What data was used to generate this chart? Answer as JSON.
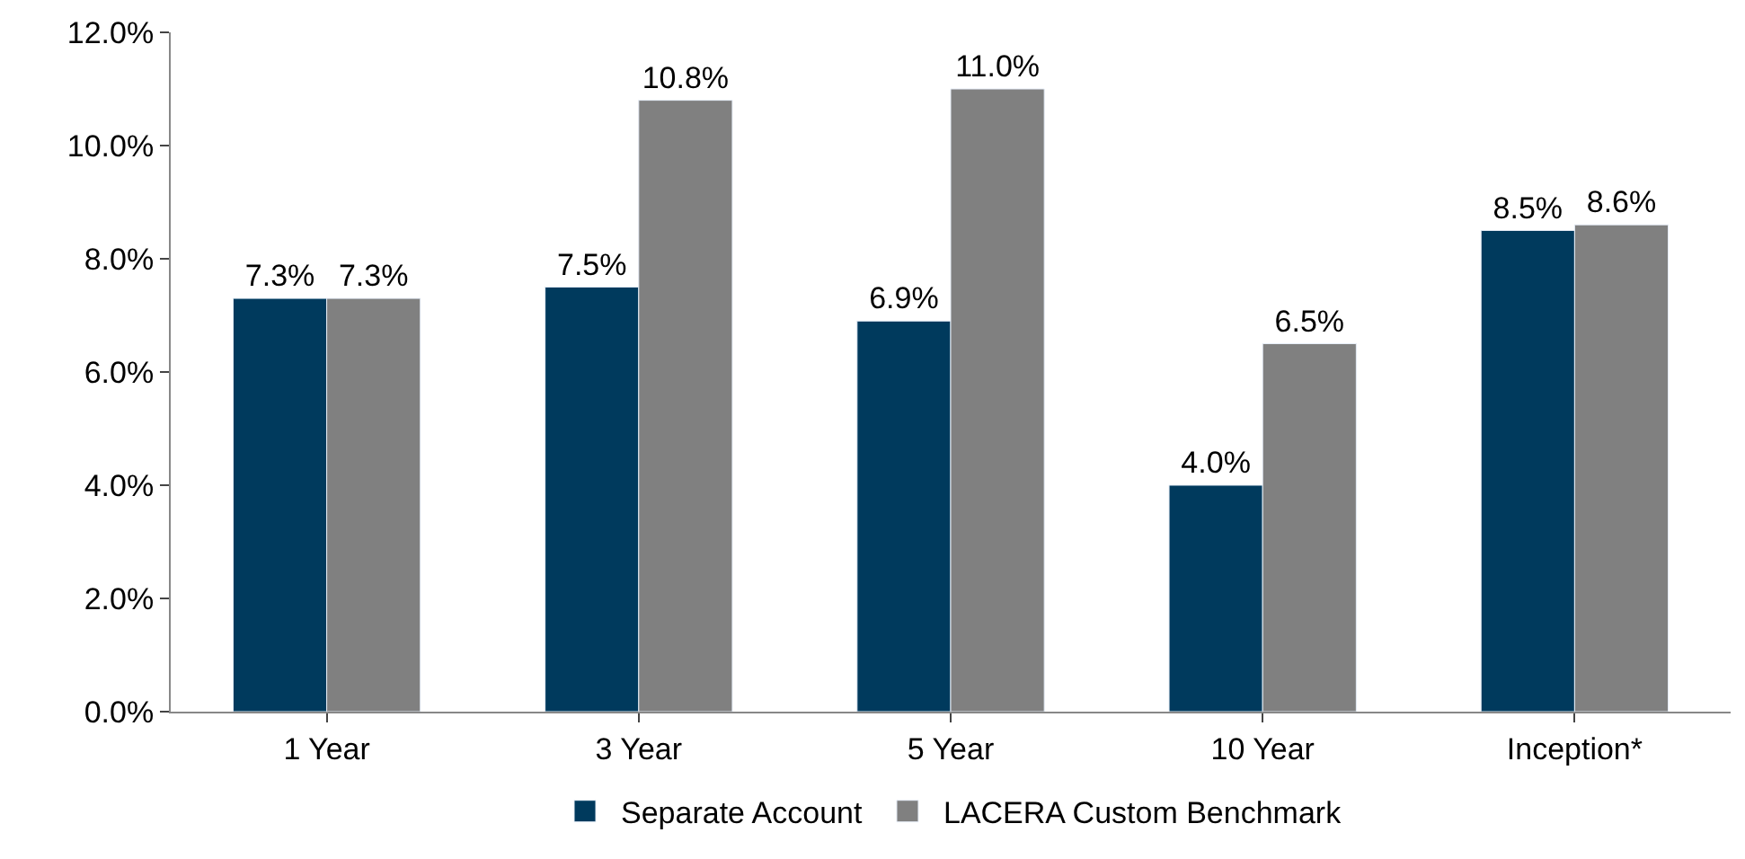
{
  "chart_data": {
    "type": "bar",
    "categories": [
      "1 Year",
      "3 Year",
      "5 Year",
      "10 Year",
      "Inception*"
    ],
    "series": [
      {
        "name": "Separate Account",
        "color": "#003a5d",
        "values": [
          7.3,
          7.5,
          6.9,
          4.0,
          8.5
        ],
        "value_labels": [
          "7.3%",
          "7.5%",
          "6.9%",
          "4.0%",
          "8.5%"
        ]
      },
      {
        "name": "LACERA Custom Benchmark",
        "color": "#808080",
        "values": [
          7.3,
          10.8,
          11.0,
          6.5,
          8.6
        ],
        "value_labels": [
          "7.3%",
          "10.8%",
          "11.0%",
          "6.5%",
          "8.6%"
        ]
      }
    ],
    "ylim": [
      0,
      12
    ],
    "yticks": [
      {
        "value": 0,
        "label": "0.0%"
      },
      {
        "value": 2,
        "label": "2.0%"
      },
      {
        "value": 4,
        "label": "4.0%"
      },
      {
        "value": 6,
        "label": "6.0%"
      },
      {
        "value": 8,
        "label": "8.0%"
      },
      {
        "value": 10,
        "label": "10.0%"
      },
      {
        "value": 12,
        "label": "12.0%"
      }
    ],
    "legend": "bottom"
  }
}
